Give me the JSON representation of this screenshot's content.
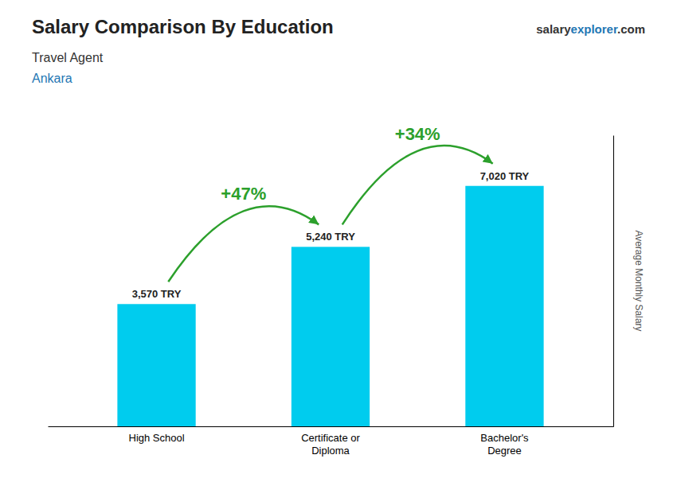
{
  "chart_data": {
    "type": "bar",
    "title": "Salary Comparison By Education",
    "subtitle": [
      "Travel Agent",
      "Ankara"
    ],
    "brand": [
      "salary",
      "explorer",
      ".com"
    ],
    "ylabel": "Average Monthly Salary",
    "categories": [
      "High School",
      "Certificate or\nDiploma",
      "Bachelor's\nDegree"
    ],
    "values": [
      3570,
      5240,
      7020
    ],
    "value_labels": [
      "3,570 TRY",
      "5,240 TRY",
      "7,020 TRY"
    ],
    "data_labels": true,
    "color": "#00ccee",
    "annotations": [
      "+47%",
      "+34%"
    ],
    "ylim": [
      0,
      8500
    ],
    "yticks": [],
    "tick_labels": "x",
    "grid": false
  }
}
